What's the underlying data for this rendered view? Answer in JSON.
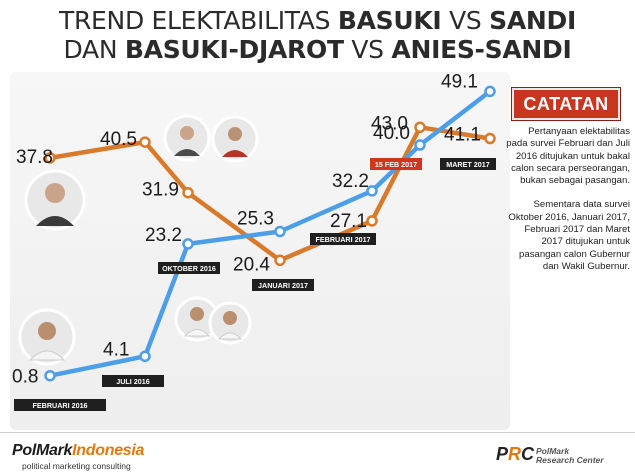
{
  "title": {
    "line1": "TREND ELEKTABILITAS",
    "b1": "BASUKI",
    "vs": "VS",
    "b2": "SANDI",
    "line2": "DAN",
    "b3": "BASUKI-DJAROT",
    "b4": "ANIES-SANDI"
  },
  "colors": {
    "blue": "#4d9ee9",
    "orange": "#d97a2b",
    "label_bg": "#1f1f1f",
    "highlight_bg": "#d3341c",
    "accent_red": "#c8361f"
  },
  "chart_data": {
    "type": "line",
    "x": [
      "FEBRUARI 2016",
      "JULI 2016",
      "OKTOBER 2016",
      "JANUARI 2017",
      "FEBRUARI 2017",
      "15 FEB 2017",
      "MARET 2017"
    ],
    "series": [
      {
        "color": "#4d9ee9",
        "values": [
          0.8,
          4.1,
          23.2,
          25.3,
          32.2,
          40.0,
          49.1
        ]
      },
      {
        "color": "#d97a2b",
        "values": [
          37.8,
          40.5,
          31.9,
          20.4,
          27.1,
          43.0,
          41.1
        ]
      }
    ],
    "value_labels_blue": [
      "0.8",
      "4.1",
      "23.2",
      "25.3",
      "32.2",
      "40.0",
      "49.1"
    ],
    "value_labels_orange": [
      "37.8",
      "40.5",
      "31.9",
      "20.4",
      "27.1",
      "43.0",
      "41.1"
    ],
    "highlighted_date": "15 FEB 2017"
  },
  "catatan": {
    "title": "CATATAN",
    "notes": [
      "Pertanyaan elektabilitas pada survei Februari dan Juli 2016 ditujukan untuk bakal calon secara perseorangan, bukan sebagai pasangan.",
      "Sementara data survei Oktober 2016, Januari 2017, Februari 2017 dan Maret 2017 ditujukan untuk pasangan calon Gubernur dan Wakil Gubernur."
    ]
  },
  "footer": {
    "polmark_a": "PolMark",
    "polmark_b": "Indonesia",
    "polmark_sub": "political marketing consulting",
    "prc_p": "P",
    "prc_r": "R",
    "prc_c": "C",
    "prc_sub1": "PolMark",
    "prc_sub2": "Research Center"
  }
}
